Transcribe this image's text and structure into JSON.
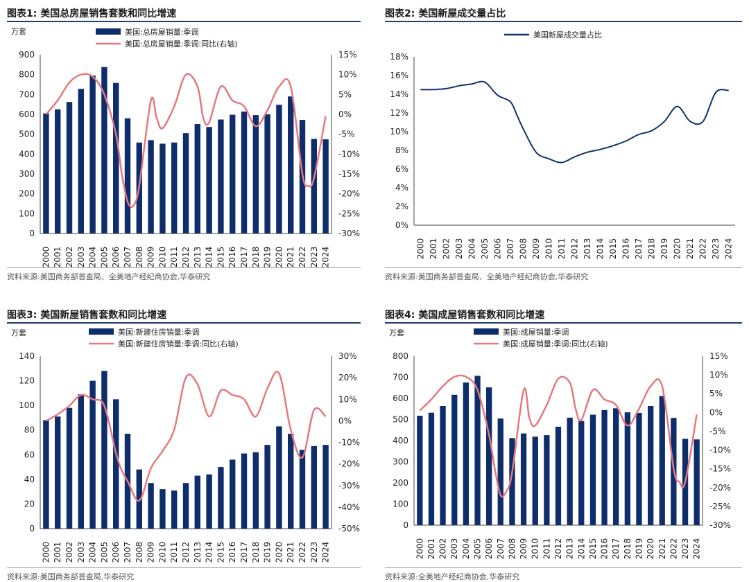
{
  "colors": {
    "bar": "#0e2d6b",
    "line": "#e6787f",
    "navy_line": "#10306a",
    "rule": "#1c3b6e"
  },
  "panels": [
    {
      "title": "图表1:  美国总房屋销售套数和同比增速",
      "source": "资料来源:美国商务部普查局、全美地产经纪商协会,华泰研究"
    },
    {
      "title": "图表2:  美国新屋成交量占比",
      "source": "资料来源:美国商务部普查局、全美地产经纪商协会,华泰研究"
    },
    {
      "title": "图表3:  美国新屋销售套数和同比增速",
      "source": "资料来源:美国商务部普查局,华泰研究"
    },
    {
      "title": "图表4:  美国成屋销售套数和同比增速",
      "source": "资料来源:全美地产经纪商协会,华泰研究"
    }
  ],
  "chart_data": [
    {
      "type": "bar",
      "unit_label": "万套",
      "categories": [
        "2000",
        "2001",
        "2002",
        "2003",
        "2004",
        "2005",
        "2006",
        "2007",
        "2008",
        "2009",
        "2010",
        "2011",
        "2012",
        "2013",
        "2014",
        "2015",
        "2016",
        "2017",
        "2018",
        "2019",
        "2020",
        "2021",
        "2022",
        "2023",
        "2024"
      ],
      "series": [
        {
          "name": "美国:总房屋销量:季调",
          "kind": "bar",
          "axis": "left",
          "values": [
            605,
            625,
            662,
            728,
            795,
            838,
            758,
            580,
            458,
            470,
            452,
            458,
            505,
            551,
            536,
            574,
            598,
            614,
            596,
            600,
            648,
            690,
            572,
            476,
            474
          ]
        },
        {
          "name": "美国:总房屋销量:季调:同比(右轴)",
          "kind": "line",
          "axis": "right",
          "x": [
            2000,
            2001,
            2002,
            2003,
            2004,
            2005,
            2006,
            2006.5,
            2007,
            2007.5,
            2008,
            2009,
            2009.5,
            2010,
            2011,
            2012,
            2013,
            2013.5,
            2014,
            2015,
            2016,
            2017,
            2018,
            2019,
            2020,
            2021,
            2022,
            2022.5,
            2023,
            2024
          ],
          "values": [
            0,
            3.5,
            8,
            10,
            9.5,
            5,
            -5,
            -15,
            -22,
            -23,
            -18,
            3.5,
            -1,
            -3.5,
            2,
            10,
            7,
            -1,
            -2,
            7,
            3.5,
            2,
            -3,
            1,
            7,
            7,
            -15,
            -18,
            -16,
            -0.5
          ]
        }
      ],
      "ylim": [
        0,
        900
      ],
      "y_ticks": [
        0,
        100,
        200,
        300,
        400,
        500,
        600,
        700,
        800,
        900
      ],
      "y2lim": [
        -30,
        15
      ],
      "y2_ticks": [
        "-30%",
        "-25%",
        "-20%",
        "-15%",
        "-10%",
        "-5%",
        "0%",
        "5%",
        "10%",
        "15%"
      ]
    },
    {
      "type": "line",
      "categories": [
        "2000",
        "2001",
        "2002",
        "2003",
        "2004",
        "2005",
        "2006",
        "2007",
        "2008",
        "2009",
        "2010",
        "2011",
        "2012",
        "2013",
        "2014",
        "2015",
        "2016",
        "2017",
        "2018",
        "2019",
        "2020",
        "2021",
        "2022",
        "2023",
        "2024"
      ],
      "series": [
        {
          "name": "美国新屋成交量占比",
          "x": [
            2000,
            2001,
            2002,
            2003,
            2004,
            2005,
            2006,
            2007,
            2007.5,
            2008,
            2009,
            2010,
            2011,
            2012,
            2013,
            2014,
            2015,
            2016,
            2017,
            2018,
            2019,
            2020,
            2021,
            2022,
            2023,
            2024
          ],
          "values": [
            14.5,
            14.5,
            14.6,
            14.9,
            15.1,
            15.3,
            13.9,
            13.2,
            11.8,
            10.3,
            7.8,
            7.1,
            6.7,
            7.3,
            7.8,
            8.1,
            8.5,
            9.0,
            9.7,
            10.1,
            11.1,
            12.7,
            11.1,
            11.1,
            14.2,
            14.4
          ]
        }
      ],
      "ylim": [
        0,
        18
      ],
      "y_ticks": [
        "0%",
        "2%",
        "4%",
        "6%",
        "8%",
        "10%",
        "12%",
        "14%",
        "16%",
        "18%"
      ]
    },
    {
      "type": "bar",
      "unit_label": "万套",
      "categories": [
        "2000",
        "2001",
        "2002",
        "2003",
        "2004",
        "2005",
        "2006",
        "2007",
        "2008",
        "2009",
        "2010",
        "2011",
        "2012",
        "2013",
        "2014",
        "2015",
        "2016",
        "2017",
        "2018",
        "2019",
        "2020",
        "2021",
        "2022",
        "2023",
        "2024"
      ],
      "series": [
        {
          "name": "美国:新建住房销量:季调",
          "kind": "bar",
          "axis": "left",
          "values": [
            88,
            91,
            98,
            109,
            120,
            128,
            105,
            77,
            48,
            37,
            32,
            31,
            37,
            43,
            44,
            50,
            56,
            61,
            62,
            68,
            83,
            77,
            64,
            67,
            68
          ]
        },
        {
          "name": "美国:新建住房销量:季调:同比(右轴)",
          "kind": "line",
          "axis": "right",
          "x": [
            2000,
            2001,
            2002,
            2003,
            2004,
            2005,
            2006,
            2006.5,
            2007,
            2008,
            2009,
            2010,
            2011,
            2012,
            2013,
            2014,
            2015,
            2016,
            2017,
            2018,
            2019,
            2020,
            2021,
            2022,
            2023,
            2024
          ],
          "values": [
            0,
            3,
            7,
            12,
            10,
            7,
            -15,
            -23,
            -28,
            -37,
            -22,
            -14,
            -4,
            20,
            17,
            2,
            14,
            12,
            10,
            2,
            15,
            22,
            -4,
            -17,
            5,
            2
          ]
        }
      ],
      "ylim": [
        0,
        140
      ],
      "y_ticks": [
        0,
        20,
        40,
        60,
        80,
        100,
        120,
        140
      ],
      "y2lim": [
        -50,
        30
      ],
      "y2_ticks": [
        "-50%",
        "-40%",
        "-30%",
        "-20%",
        "-10%",
        "0%",
        "10%",
        "20%",
        "30%"
      ]
    },
    {
      "type": "bar",
      "unit_label": "万套",
      "categories": [
        "2000",
        "2001",
        "2002",
        "2003",
        "2004",
        "2005",
        "2006",
        "2007",
        "2008",
        "2009",
        "2010",
        "2011",
        "2012",
        "2013",
        "2014",
        "2015",
        "2016",
        "2017",
        "2018",
        "2019",
        "2020",
        "2021",
        "2022",
        "2023",
        "2024"
      ],
      "series": [
        {
          "name": "美国:成屋销量:季调",
          "kind": "bar",
          "axis": "left",
          "values": [
            518,
            532,
            564,
            617,
            675,
            707,
            652,
            505,
            412,
            434,
            419,
            426,
            466,
            509,
            493,
            523,
            545,
            553,
            534,
            531,
            564,
            611,
            508,
            409,
            406
          ]
        },
        {
          "name": "美国:成屋销量:季调:同比(右轴)",
          "kind": "line",
          "axis": "right",
          "x": [
            2000,
            2001,
            2002,
            2003,
            2004,
            2005,
            2006,
            2006.5,
            2007,
            2007.5,
            2008,
            2009,
            2009.5,
            2010,
            2011,
            2012,
            2013,
            2013.5,
            2014,
            2015,
            2016,
            2017,
            2018,
            2019,
            2020,
            2021,
            2022,
            2022.5,
            2023,
            2024
          ],
          "values": [
            0.5,
            3.5,
            7,
            9.5,
            9.5,
            6,
            -6,
            -15,
            -22,
            -21,
            -16,
            6,
            -1.5,
            -3.5,
            2,
            9,
            8,
            1,
            -2,
            6,
            3.5,
            2,
            -3.5,
            1,
            7,
            7,
            -15,
            -18.5,
            -18.5,
            -0.5
          ]
        }
      ],
      "ylim": [
        0,
        800
      ],
      "y_ticks": [
        0,
        100,
        200,
        300,
        400,
        500,
        600,
        700,
        800
      ],
      "y2lim": [
        -30,
        15
      ],
      "y2_ticks": [
        "-30%",
        "-25%",
        "-20%",
        "-15%",
        "-10%",
        "-5%",
        "0%",
        "5%",
        "10%",
        "15%"
      ]
    }
  ]
}
